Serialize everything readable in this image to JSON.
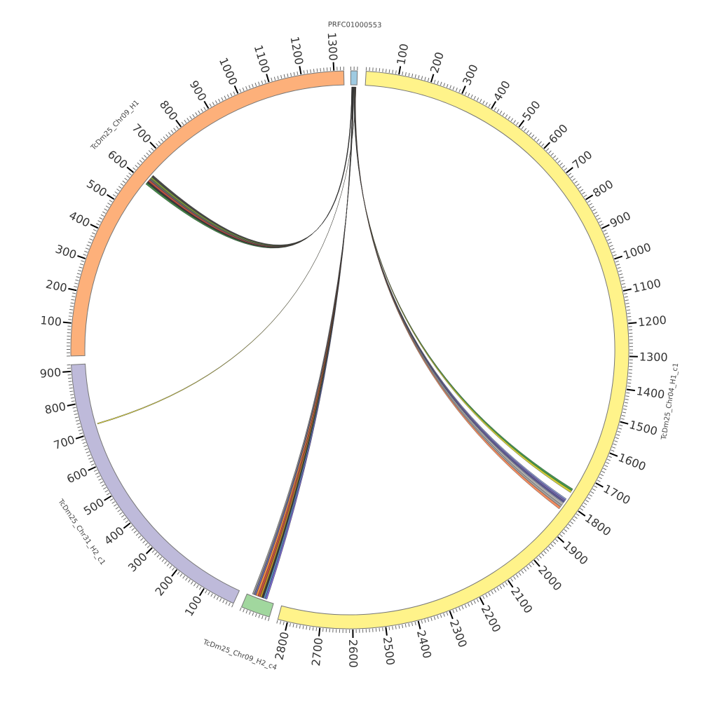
{
  "chart_data": {
    "type": "chord",
    "title": "",
    "units_per_tick": {
      "major": 100,
      "minor": 10
    },
    "segments": [
      {
        "name": "PRFC01000553",
        "length": 20,
        "color": "#9ecae1"
      },
      {
        "name": "TcDm25_Chr04_H1_c1",
        "length": 2830,
        "color": "#fff38a"
      },
      {
        "name": "TcDm25_Chr09_H2_c4",
        "length": 90,
        "color": "#a1d79e"
      },
      {
        "name": "TcDm25_Chr31_H2_c1",
        "length": 920,
        "color": "#bebada"
      },
      {
        "name": "TcDm25_Chr09_H1",
        "length": 1330,
        "color": "#fdb07a"
      }
    ],
    "links": [
      {
        "source": {
          "seg": 0,
          "start": 3.0,
          "end": 3.4
        },
        "target": {
          "seg": 4,
          "start": 596,
          "end": 602
        },
        "color": "#2e7d32"
      },
      {
        "source": {
          "seg": 0,
          "start": 3.4,
          "end": 3.8
        },
        "target": {
          "seg": 4,
          "start": 602,
          "end": 608
        },
        "color": "#222222"
      },
      {
        "source": {
          "seg": 0,
          "start": 3.8,
          "end": 4.2
        },
        "target": {
          "seg": 4,
          "start": 608,
          "end": 614
        },
        "color": "#c0392b"
      },
      {
        "source": {
          "seg": 0,
          "start": 4.2,
          "end": 4.6
        },
        "target": {
          "seg": 4,
          "start": 614,
          "end": 620
        },
        "color": "#555555"
      },
      {
        "source": {
          "seg": 0,
          "start": 4.6,
          "end": 5.0
        },
        "target": {
          "seg": 4,
          "start": 620,
          "end": 626
        },
        "color": "#6b8e23"
      },
      {
        "source": {
          "seg": 0,
          "start": 5.0,
          "end": 5.4
        },
        "target": {
          "seg": 4,
          "start": 626,
          "end": 633
        },
        "color": "#333333"
      },
      {
        "source": {
          "seg": 0,
          "start": 17.0,
          "end": 17.2
        },
        "target": {
          "seg": 3,
          "start": 723,
          "end": 726
        },
        "color": "#e8e020"
      },
      {
        "source": {
          "seg": 0,
          "start": 5.6,
          "end": 6.2
        },
        "target": {
          "seg": 2,
          "start": 24,
          "end": 30
        },
        "color": "#6a5acd"
      },
      {
        "source": {
          "seg": 0,
          "start": 6.2,
          "end": 6.8
        },
        "target": {
          "seg": 2,
          "start": 30,
          "end": 36
        },
        "color": "#4682b4"
      },
      {
        "source": {
          "seg": 0,
          "start": 6.8,
          "end": 7.4
        },
        "target": {
          "seg": 2,
          "start": 36,
          "end": 42
        },
        "color": "#222222"
      },
      {
        "source": {
          "seg": 0,
          "start": 7.4,
          "end": 8.0
        },
        "target": {
          "seg": 2,
          "start": 42,
          "end": 48
        },
        "color": "#b8860b"
      },
      {
        "source": {
          "seg": 0,
          "start": 8.0,
          "end": 8.6
        },
        "target": {
          "seg": 2,
          "start": 48,
          "end": 55
        },
        "color": "#c0392b"
      },
      {
        "source": {
          "seg": 0,
          "start": 8.6,
          "end": 9.2
        },
        "target": {
          "seg": 2,
          "start": 55,
          "end": 62
        },
        "color": "#f08030"
      },
      {
        "source": {
          "seg": 0,
          "start": 9.2,
          "end": 9.8
        },
        "target": {
          "seg": 2,
          "start": 62,
          "end": 68
        },
        "color": "#5a5a9a"
      },
      {
        "source": {
          "seg": 0,
          "start": 9.8,
          "end": 10.4
        },
        "target": {
          "seg": 2,
          "start": 68,
          "end": 74
        },
        "color": "#888888"
      },
      {
        "source": {
          "seg": 0,
          "start": 10.6,
          "end": 11.4
        },
        "target": {
          "seg": 1,
          "start": 1752,
          "end": 1759
        },
        "color": "#2e8b3a"
      },
      {
        "source": {
          "seg": 0,
          "start": 11.4,
          "end": 12.2
        },
        "target": {
          "seg": 1,
          "start": 1759,
          "end": 1766
        },
        "color": "#c8c820"
      },
      {
        "source": {
          "seg": 0,
          "start": 12.2,
          "end": 12.8
        },
        "target": {
          "seg": 1,
          "start": 1790,
          "end": 1795
        },
        "color": "#7a8ac8"
      },
      {
        "source": {
          "seg": 0,
          "start": 12.8,
          "end": 13.4
        },
        "target": {
          "seg": 1,
          "start": 1795,
          "end": 1800
        },
        "color": "#6a5ab0"
      },
      {
        "source": {
          "seg": 0,
          "start": 13.4,
          "end": 14.0
        },
        "target": {
          "seg": 1,
          "start": 1800,
          "end": 1806
        },
        "color": "#4a4a8a"
      },
      {
        "source": {
          "seg": 0,
          "start": 14.0,
          "end": 14.6
        },
        "target": {
          "seg": 1,
          "start": 1808,
          "end": 1815
        },
        "color": "#aaaaaa"
      },
      {
        "source": {
          "seg": 0,
          "start": 14.6,
          "end": 15.2
        },
        "target": {
          "seg": 1,
          "start": 1815,
          "end": 1822
        },
        "color": "#999999"
      },
      {
        "source": {
          "seg": 0,
          "start": 15.2,
          "end": 16.0
        },
        "target": {
          "seg": 1,
          "start": 1822,
          "end": 1830
        },
        "color": "#f08050"
      }
    ]
  }
}
